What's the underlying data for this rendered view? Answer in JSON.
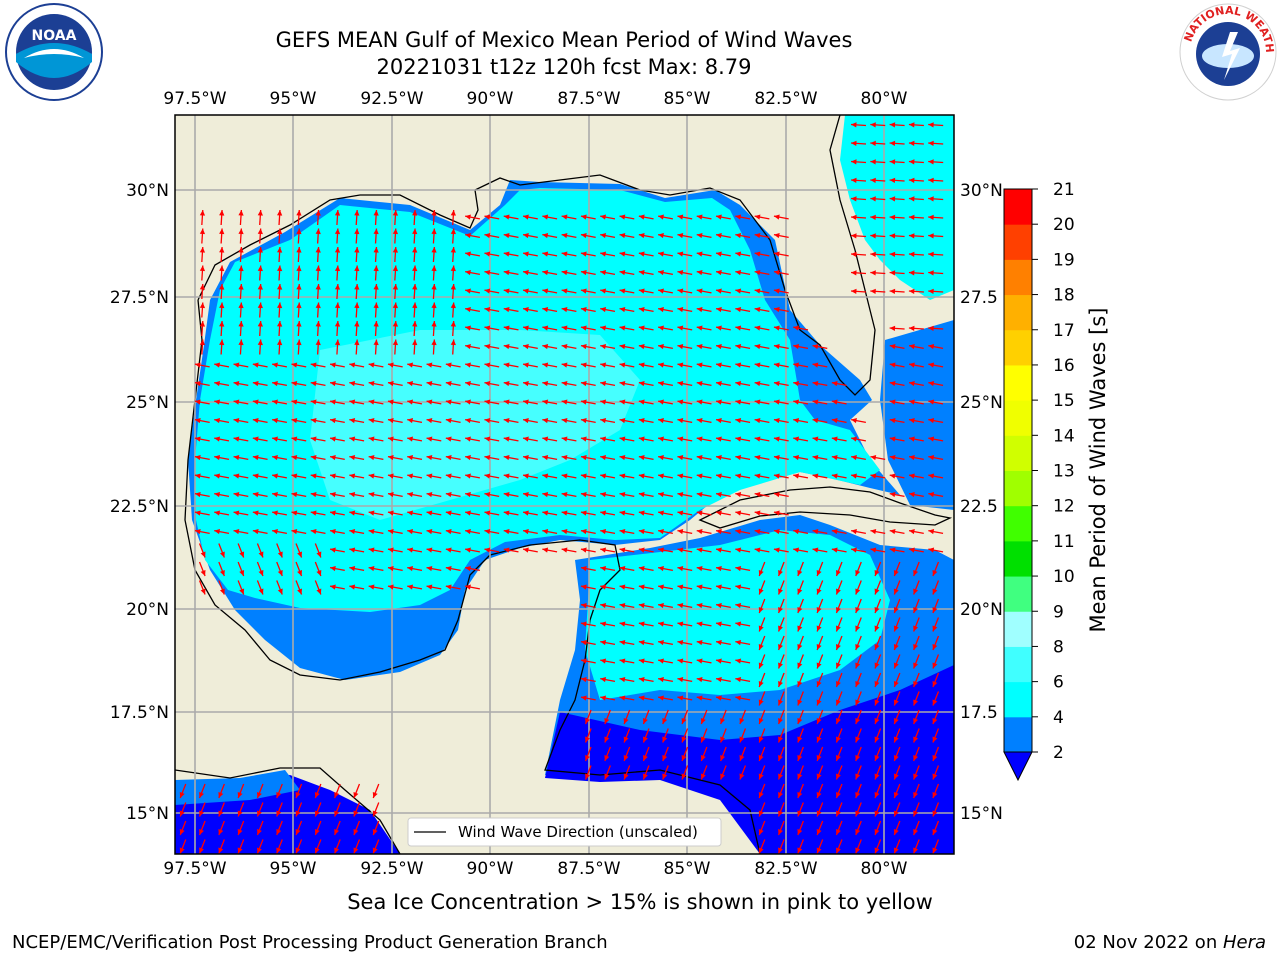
{
  "header": {
    "title_line1": "GEFS MEAN Gulf of Mexico Mean Period of Wind Waves",
    "title_line2": "20221031 t12z 120h fcst   Max: 8.79"
  },
  "logos": {
    "left": {
      "text": "NOAA",
      "ring_text": "NATIONAL OCEANIC AND ATMOSPHERIC ADMINISTRATION · U.S. DEPARTMENT OF COMMERCE"
    },
    "right": {
      "ring_text": "NATIONAL WEATHER SERVICE"
    }
  },
  "map": {
    "lon_labels": [
      "97.5°W",
      "95°W",
      "92.5°W",
      "90°W",
      "87.5°W",
      "85°W",
      "82.5°W",
      "80°W"
    ],
    "lat_labels_left": [
      "30°N",
      "27.5°N",
      "25°N",
      "22.5°N",
      "20°N",
      "17.5°N",
      "15°N"
    ],
    "lat_labels_right": [
      "30°N",
      "27.5",
      "25°N",
      "22.5",
      "20°N",
      "17.5",
      "15°N"
    ],
    "legend_label": "Wind Wave Direction (unscaled)",
    "colors": {
      "land": "#efedd9",
      "water_dark": "#0000ff",
      "water_mid": "#0080ff",
      "water_light": "#00ffff",
      "water_pale": "#80ffff",
      "arrow": "#ff0000"
    }
  },
  "colorbar": {
    "label": "Mean Period of Wind Waves [s]",
    "ticks": [
      "2",
      "4",
      "6",
      "8",
      "9",
      "10",
      "11",
      "12",
      "13",
      "14",
      "15",
      "16",
      "17",
      "18",
      "19",
      "20",
      "21"
    ],
    "colors": [
      "#0080ff",
      "#00ffff",
      "#40ffff",
      "#a0ffff",
      "#40ff80",
      "#00e000",
      "#40ff00",
      "#a0ff00",
      "#d0ff00",
      "#f0ff00",
      "#ffff00",
      "#ffd000",
      "#ffb000",
      "#ff8000",
      "#ff4000",
      "#ff0000"
    ],
    "extend_color": "#0000ff"
  },
  "notes": {
    "ice": "Sea Ice Concentration > 15% is shown in pink to yellow"
  },
  "footer": {
    "left": "NCEP/EMC/Verification Post Processing Product Generation Branch",
    "right_prefix": "02 Nov 2022 on ",
    "right_host": "Hera"
  }
}
